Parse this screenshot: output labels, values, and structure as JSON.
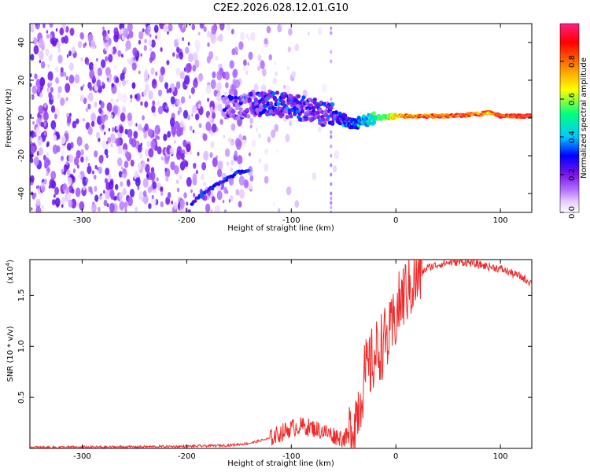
{
  "chart_data": [
    {
      "type": "heatmap",
      "title": "C2E2.2026.028.12.01.G10",
      "xlabel": "Height of straight line (km)",
      "ylabel": "Frequency (Hz)",
      "xlim": [
        -350,
        130
      ],
      "ylim": [
        -50,
        50
      ],
      "xticks": [
        -300,
        -200,
        -100,
        0,
        100
      ],
      "yticks": [
        -40,
        -20,
        0,
        20,
        40
      ],
      "colorbar": {
        "label": "Normalized spectral amplitude",
        "range": [
          0,
          1
        ],
        "ticks": [
          "0.0",
          "0.2",
          "0.4",
          "0.6",
          "0.8"
        ],
        "colors": [
          "#ffffff",
          "#e6c8ff",
          "#b070ff",
          "#7a16e8",
          "#0000ff",
          "#00c8ff",
          "#00ff80",
          "#ffff00",
          "#ff8000",
          "#ff0000",
          "#ff2080"
        ]
      },
      "trace": {
        "x": [
          -160,
          -140,
          -120,
          -100,
          -80,
          -60,
          -40,
          -20,
          0,
          20,
          50,
          80,
          90,
          100,
          130
        ],
        "freq": [
          5,
          7,
          8,
          6,
          4,
          1,
          -3,
          0,
          1,
          1,
          1,
          2,
          3,
          1,
          1
        ],
        "amplitude": [
          0.25,
          0.3,
          0.35,
          0.35,
          0.3,
          0.35,
          0.45,
          0.6,
          0.8,
          0.9,
          0.95,
          0.9,
          0.85,
          0.95,
          0.95
        ]
      },
      "side_branch": {
        "x": [
          -195,
          -185,
          -170,
          -155,
          -140
        ],
        "freq": [
          -45,
          -40,
          -35,
          -30,
          -27
        ]
      }
    },
    {
      "type": "line",
      "xlabel": "Height of straight line (km)",
      "ylabel": "SNR (10 * v/v)",
      "yscale_label": "(x10",
      "yscale_exp": "4",
      "xlim": [
        -350,
        130
      ],
      "ylim": [
        0,
        1.85
      ],
      "xticks": [
        -300,
        -200,
        -100,
        0,
        100
      ],
      "yticks": [
        0.5,
        1.0,
        1.5
      ],
      "ytick_labels": [
        "0.5",
        "1.0",
        "1.5"
      ],
      "color": "#ee2a2a",
      "x": [
        -350,
        -300,
        -250,
        -200,
        -160,
        -140,
        -120,
        -110,
        -100,
        -90,
        -80,
        -70,
        -60,
        -50,
        -45,
        -40,
        -35,
        -30,
        -25,
        -20,
        -15,
        -10,
        -5,
        0,
        5,
        10,
        15,
        20,
        25,
        30,
        40,
        50,
        60,
        70,
        80,
        90,
        100,
        110,
        120,
        130
      ],
      "y": [
        0.01,
        0.012,
        0.015,
        0.02,
        0.03,
        0.05,
        0.1,
        0.15,
        0.2,
        0.22,
        0.2,
        0.17,
        0.13,
        0.1,
        0.12,
        0.25,
        0.45,
        0.7,
        0.8,
        0.9,
        1.0,
        1.05,
        1.1,
        1.3,
        1.45,
        1.55,
        1.6,
        1.65,
        1.72,
        1.77,
        1.8,
        1.82,
        1.83,
        1.82,
        1.8,
        1.78,
        1.76,
        1.72,
        1.68,
        1.62
      ]
    }
  ]
}
